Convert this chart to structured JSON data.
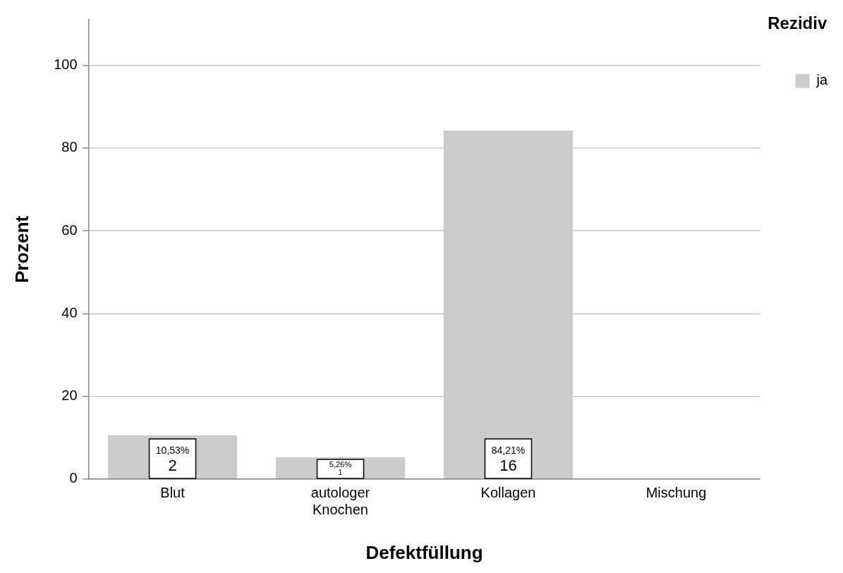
{
  "chart_data": {
    "type": "bar",
    "xlabel": "Defektfüllung",
    "ylabel": "Prozent",
    "legend_title": "Rezidiv",
    "categories": [
      "Blut",
      "autologer Knochen",
      "Kollagen",
      "Mischung"
    ],
    "series": [
      {
        "name": "ja",
        "color": "#cccccc",
        "values": [
          10.53,
          5.26,
          84.21,
          0
        ],
        "value_labels": [
          "10,53%\n2",
          "5,26%\n1",
          "84,21%\n16",
          null
        ]
      }
    ],
    "ylim": [
      0,
      111
    ],
    "yticks": [
      0,
      20,
      40,
      60,
      80,
      100
    ],
    "grid": "y",
    "legend": "top right"
  }
}
